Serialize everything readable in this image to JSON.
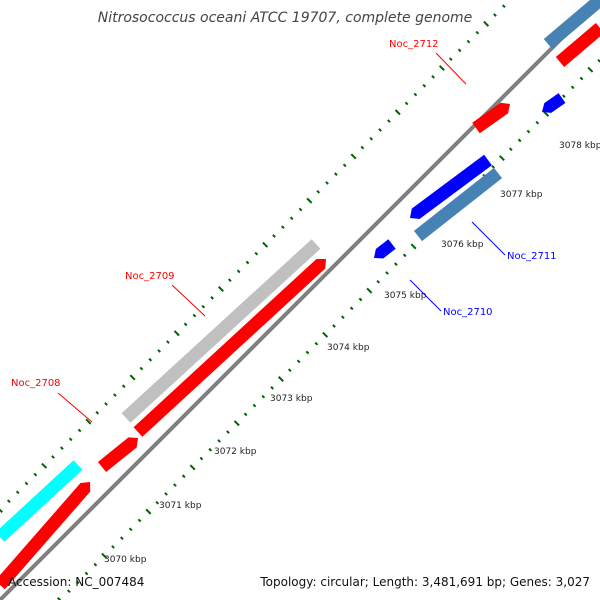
{
  "title": "Nitrosococcus oceani ATCC 19707, complete genome",
  "footer": {
    "accession": "Accession: NC_007484",
    "summary": "Topology: circular; Length: 3,481,691 bp; Genes: 3,027"
  },
  "ticks": [
    "3070 kbp",
    "3071 kbp",
    "3072 kbp",
    "3073 kbp",
    "3074 kbp",
    "3075 kbp",
    "3076 kbp",
    "3077 kbp",
    "3078 kbp"
  ],
  "genes": [
    {
      "id": "Noc_2708",
      "strand": "forward",
      "color": "#ff0000"
    },
    {
      "id": "Noc_2709",
      "strand": "forward",
      "color": "#ff0000"
    },
    {
      "id": "Noc_2710",
      "strand": "reverse",
      "color": "#0000ff"
    },
    {
      "id": "Noc_2711",
      "strand": "reverse",
      "color": "#0000ff"
    },
    {
      "id": "Noc_2712",
      "strand": "forward",
      "color": "#ff0000"
    }
  ],
  "colors": {
    "forward_cds": "#ff0000",
    "reverse_cds": "#0000ff",
    "forward_rna": "#c0c0c0",
    "forward_cyan": "#00ffff",
    "reverse_steel": "#4682b4",
    "backbone": "#808080",
    "gc_dots": "#006400"
  }
}
